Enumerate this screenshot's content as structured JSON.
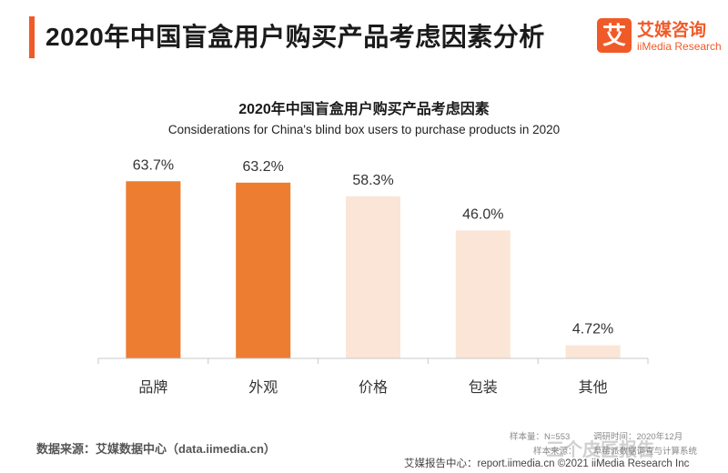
{
  "header": {
    "title": "2020年中国盲盒用户购买产品考虑因素分析"
  },
  "logo": {
    "glyph": "艾",
    "name_cn": "艾媒咨询",
    "name_en": "iiMedia Research"
  },
  "chart_data": {
    "type": "bar",
    "title": "2020年中国盲盒用户购买产品考虑因素",
    "subtitle": "Considerations for China's blind box users to purchase products in 2020",
    "categories": [
      "品牌",
      "外观",
      "价格",
      "包装",
      "其他"
    ],
    "values": [
      63.7,
      63.2,
      58.3,
      46.0,
      4.72
    ],
    "value_labels": [
      "63.7%",
      "63.2%",
      "58.3%",
      "46.0%",
      "4.72%"
    ],
    "bar_colors": [
      "#ed7d31",
      "#ed7d31",
      "#fbe5d6",
      "#fbe5d6",
      "#fbe5d6"
    ],
    "ylim": [
      0,
      70
    ],
    "xlabel": "",
    "ylabel": "",
    "grid": false,
    "legend": false
  },
  "footer": {
    "source": "数据来源：艾媒数据中心（data.iimedia.cn）",
    "sample": "样本量：N=553",
    "survey_time": "调研时间：2020年12月",
    "sample_source": "样本来源：",
    "channel": "草莓派数据调查与计算系统",
    "report_center": "艾媒报告中心：report.iimedia.cn  ©2021  iiMedia Research  Inc",
    "watermark": "三个皮匠报告"
  }
}
